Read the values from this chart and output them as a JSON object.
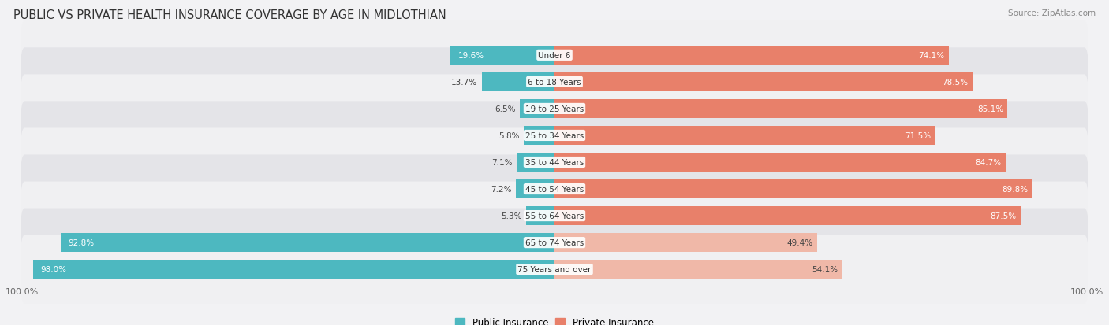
{
  "title": "PUBLIC VS PRIVATE HEALTH INSURANCE COVERAGE BY AGE IN MIDLOTHIAN",
  "source": "Source: ZipAtlas.com",
  "categories": [
    "Under 6",
    "6 to 18 Years",
    "19 to 25 Years",
    "25 to 34 Years",
    "35 to 44 Years",
    "45 to 54 Years",
    "55 to 64 Years",
    "65 to 74 Years",
    "75 Years and over"
  ],
  "public": [
    19.6,
    13.7,
    6.5,
    5.8,
    7.1,
    7.2,
    5.3,
    92.8,
    98.0
  ],
  "private": [
    74.1,
    78.5,
    85.1,
    71.5,
    84.7,
    89.8,
    87.5,
    49.4,
    54.1
  ],
  "public_color": "#4db8c0",
  "private_color_dark": "#e8806a",
  "private_color_light": "#f0b8a8",
  "row_bg_light": "#f0f0f2",
  "row_bg_dark": "#e4e4e8",
  "axis_label": "100.0%",
  "legend_public": "Public Insurance",
  "legend_private": "Private Insurance",
  "title_fontsize": 10.5,
  "source_fontsize": 7.5,
  "bar_label_fontsize": 7.5,
  "category_fontsize": 7.5,
  "max_value": 100.0,
  "private_light_threshold": 7
}
